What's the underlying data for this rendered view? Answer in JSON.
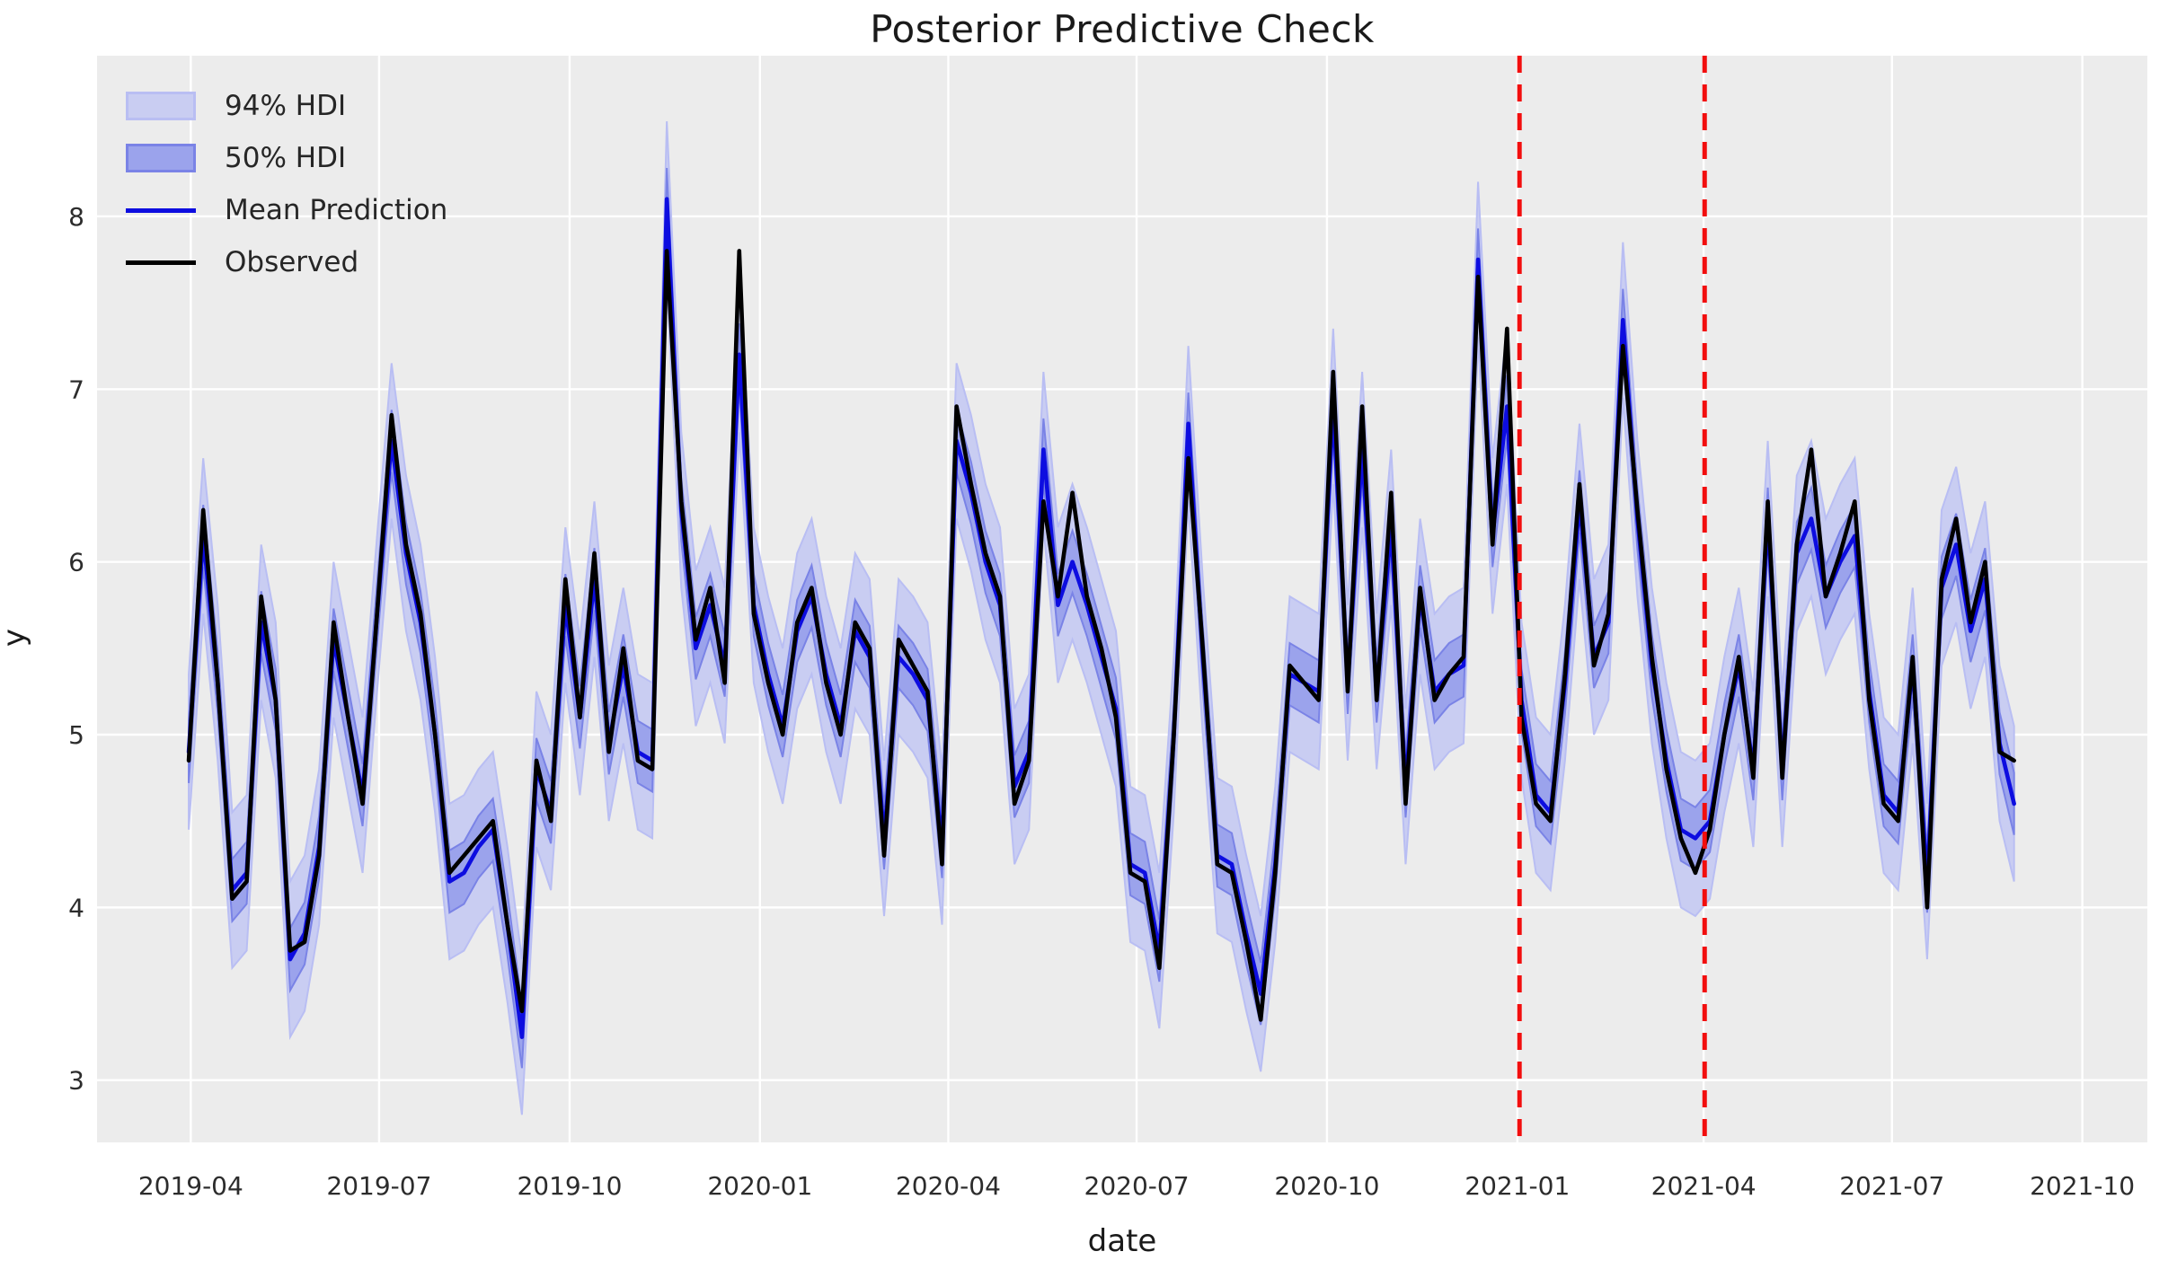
{
  "title": "Posterior Predictive Check",
  "axes": {
    "xlabel": "date",
    "ylabel": "y",
    "x_tick_labels": [
      "2019-04",
      "2019-07",
      "2019-10",
      "2020-01",
      "2020-04",
      "2020-07",
      "2020-10",
      "2021-01",
      "2021-04",
      "2021-07",
      "2021-10"
    ],
    "y_tick_labels": [
      "3",
      "4",
      "5",
      "6",
      "7",
      "8"
    ]
  },
  "legend": {
    "items": [
      {
        "label": "94% HDI",
        "type": "patch",
        "fill": "#c9cdf2",
        "edge": "#b9bef3"
      },
      {
        "label": "50% HDI",
        "type": "patch",
        "fill": "#9ba3ec",
        "edge": "#7a83e6"
      },
      {
        "label": "Mean Prediction",
        "type": "line",
        "color": "#0d0de0"
      },
      {
        "label": "Observed",
        "type": "line",
        "color": "#000000"
      }
    ]
  },
  "colors": {
    "figure_bg": "#ffffff",
    "plot_bg": "#ececec",
    "grid": "#ffffff",
    "tick_text": "#2c2c2c",
    "observed_line": "#000000",
    "mean_line": "#0d0de0",
    "hdi94_fill": "#c9cdf2",
    "hdi94_edge": "#b9bef3",
    "hdi50_fill": "#9ba3ec",
    "hdi50_edge": "#7a83e6",
    "split_line": "#f20e0e"
  },
  "chart_data": {
    "type": "line",
    "title": "Posterior Predictive Check",
    "xlabel": "date",
    "ylabel": "y",
    "grid": true,
    "legend_position": "upper left",
    "x_start_date": "2019-03-31",
    "x_freq": "weekly",
    "n_points": 127,
    "xlim_week_offsets": [
      -6.33,
      135.2
    ],
    "ylim": [
      2.64,
      8.93
    ],
    "x_tick_week_offsets": [
      0.14,
      13.14,
      26.29,
      39.43,
      52.43,
      65.43,
      78.57,
      91.71,
      104.57,
      117.57,
      130.71
    ],
    "hdi_94_halfwidth": 0.45,
    "hdi_50_halfwidth": 0.18,
    "vertical_lines": {
      "dates": [
        "2021-01-02",
        "2021-04-01"
      ],
      "week_offsets": [
        91.86,
        104.64
      ],
      "style": "dashed",
      "color": "#f20e0e"
    },
    "series": [
      {
        "name": "Observed",
        "values": [
          4.85,
          6.3,
          5.3,
          4.05,
          4.15,
          5.8,
          5.2,
          3.75,
          3.8,
          4.3,
          5.65,
          5.1,
          4.6,
          5.7,
          6.85,
          6.1,
          5.7,
          5.0,
          4.2,
          4.3,
          4.4,
          4.5,
          3.9,
          3.4,
          4.85,
          4.5,
          5.9,
          5.1,
          6.05,
          4.9,
          5.5,
          4.85,
          4.8,
          7.8,
          6.35,
          5.55,
          5.85,
          5.3,
          7.8,
          5.7,
          5.3,
          5.0,
          5.65,
          5.85,
          5.3,
          5.0,
          5.65,
          5.5,
          4.3,
          5.55,
          5.4,
          5.25,
          4.25,
          6.9,
          6.45,
          6.05,
          5.8,
          4.6,
          4.85,
          6.35,
          5.8,
          6.4,
          5.8,
          5.5,
          5.1,
          4.2,
          4.15,
          3.65,
          5.0,
          6.6,
          5.5,
          4.25,
          4.2,
          3.8,
          3.35,
          4.2,
          5.4,
          5.3,
          5.2,
          7.1,
          5.25,
          6.9,
          5.2,
          6.4,
          4.6,
          5.85,
          5.2,
          5.35,
          5.45,
          7.65,
          6.1,
          7.35,
          5.1,
          4.6,
          4.5,
          5.35,
          6.45,
          5.4,
          5.7,
          7.25,
          6.3,
          5.45,
          4.8,
          4.4,
          4.2,
          4.45,
          5.0,
          5.45,
          4.75,
          6.35,
          4.75,
          6.1,
          6.65,
          5.8,
          6.05,
          6.35,
          5.2,
          4.6,
          4.5,
          5.45,
          4.0,
          5.9,
          6.25,
          5.65,
          6.0,
          4.9,
          4.85
        ]
      },
      {
        "name": "Mean Prediction",
        "values": [
          4.9,
          6.15,
          5.3,
          4.1,
          4.2,
          5.65,
          5.2,
          3.7,
          3.85,
          4.35,
          5.55,
          5.1,
          4.65,
          5.7,
          6.7,
          6.05,
          5.65,
          5.0,
          4.15,
          4.2,
          4.35,
          4.45,
          3.9,
          3.25,
          4.8,
          4.55,
          5.75,
          5.1,
          5.9,
          4.95,
          5.4,
          4.9,
          4.85,
          8.1,
          6.3,
          5.5,
          5.75,
          5.4,
          7.2,
          5.75,
          5.35,
          5.05,
          5.6,
          5.8,
          5.35,
          5.05,
          5.6,
          5.45,
          4.4,
          5.45,
          5.35,
          5.2,
          4.35,
          6.7,
          6.4,
          6.0,
          5.75,
          4.7,
          4.9,
          6.65,
          5.75,
          6.0,
          5.75,
          5.45,
          5.15,
          4.25,
          4.2,
          3.75,
          5.0,
          6.8,
          5.45,
          4.3,
          4.25,
          3.85,
          3.5,
          4.25,
          5.35,
          5.3,
          5.25,
          6.9,
          5.3,
          6.65,
          5.25,
          6.2,
          4.7,
          5.8,
          5.25,
          5.35,
          5.4,
          7.75,
          6.15,
          6.9,
          5.2,
          4.65,
          4.55,
          5.3,
          6.35,
          5.45,
          5.65,
          7.4,
          6.25,
          5.4,
          4.85,
          4.45,
          4.4,
          4.5,
          5.0,
          5.4,
          4.8,
          6.25,
          4.8,
          6.05,
          6.25,
          5.8,
          6.0,
          6.15,
          5.25,
          4.65,
          4.55,
          5.4,
          4.15,
          5.85,
          6.1,
          5.6,
          5.9,
          4.95,
          4.6
        ]
      }
    ]
  }
}
